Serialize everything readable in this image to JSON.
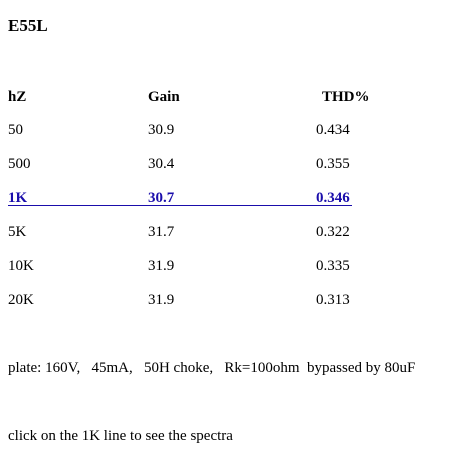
{
  "title": "E55L",
  "table": {
    "header": [
      "hZ",
      "Gain",
      "THD%"
    ],
    "rows": [
      [
        "50",
        "30.9",
        "0.434"
      ],
      [
        "500",
        "30.4",
        "0.355"
      ],
      [
        "1K",
        "30.7",
        "0.346"
      ],
      [
        "5K",
        "31.7",
        "0.322"
      ],
      [
        "10K",
        "31.9",
        "0.335"
      ],
      [
        "20K",
        "31.9",
        "0.313"
      ]
    ],
    "link_row": 2
  },
  "note": "plate: 160V,   45mA,   50H choke,   Rk=100ohm  bypassed by 80uF",
  "instruction": "click on the 1K line to see the spectra"
}
